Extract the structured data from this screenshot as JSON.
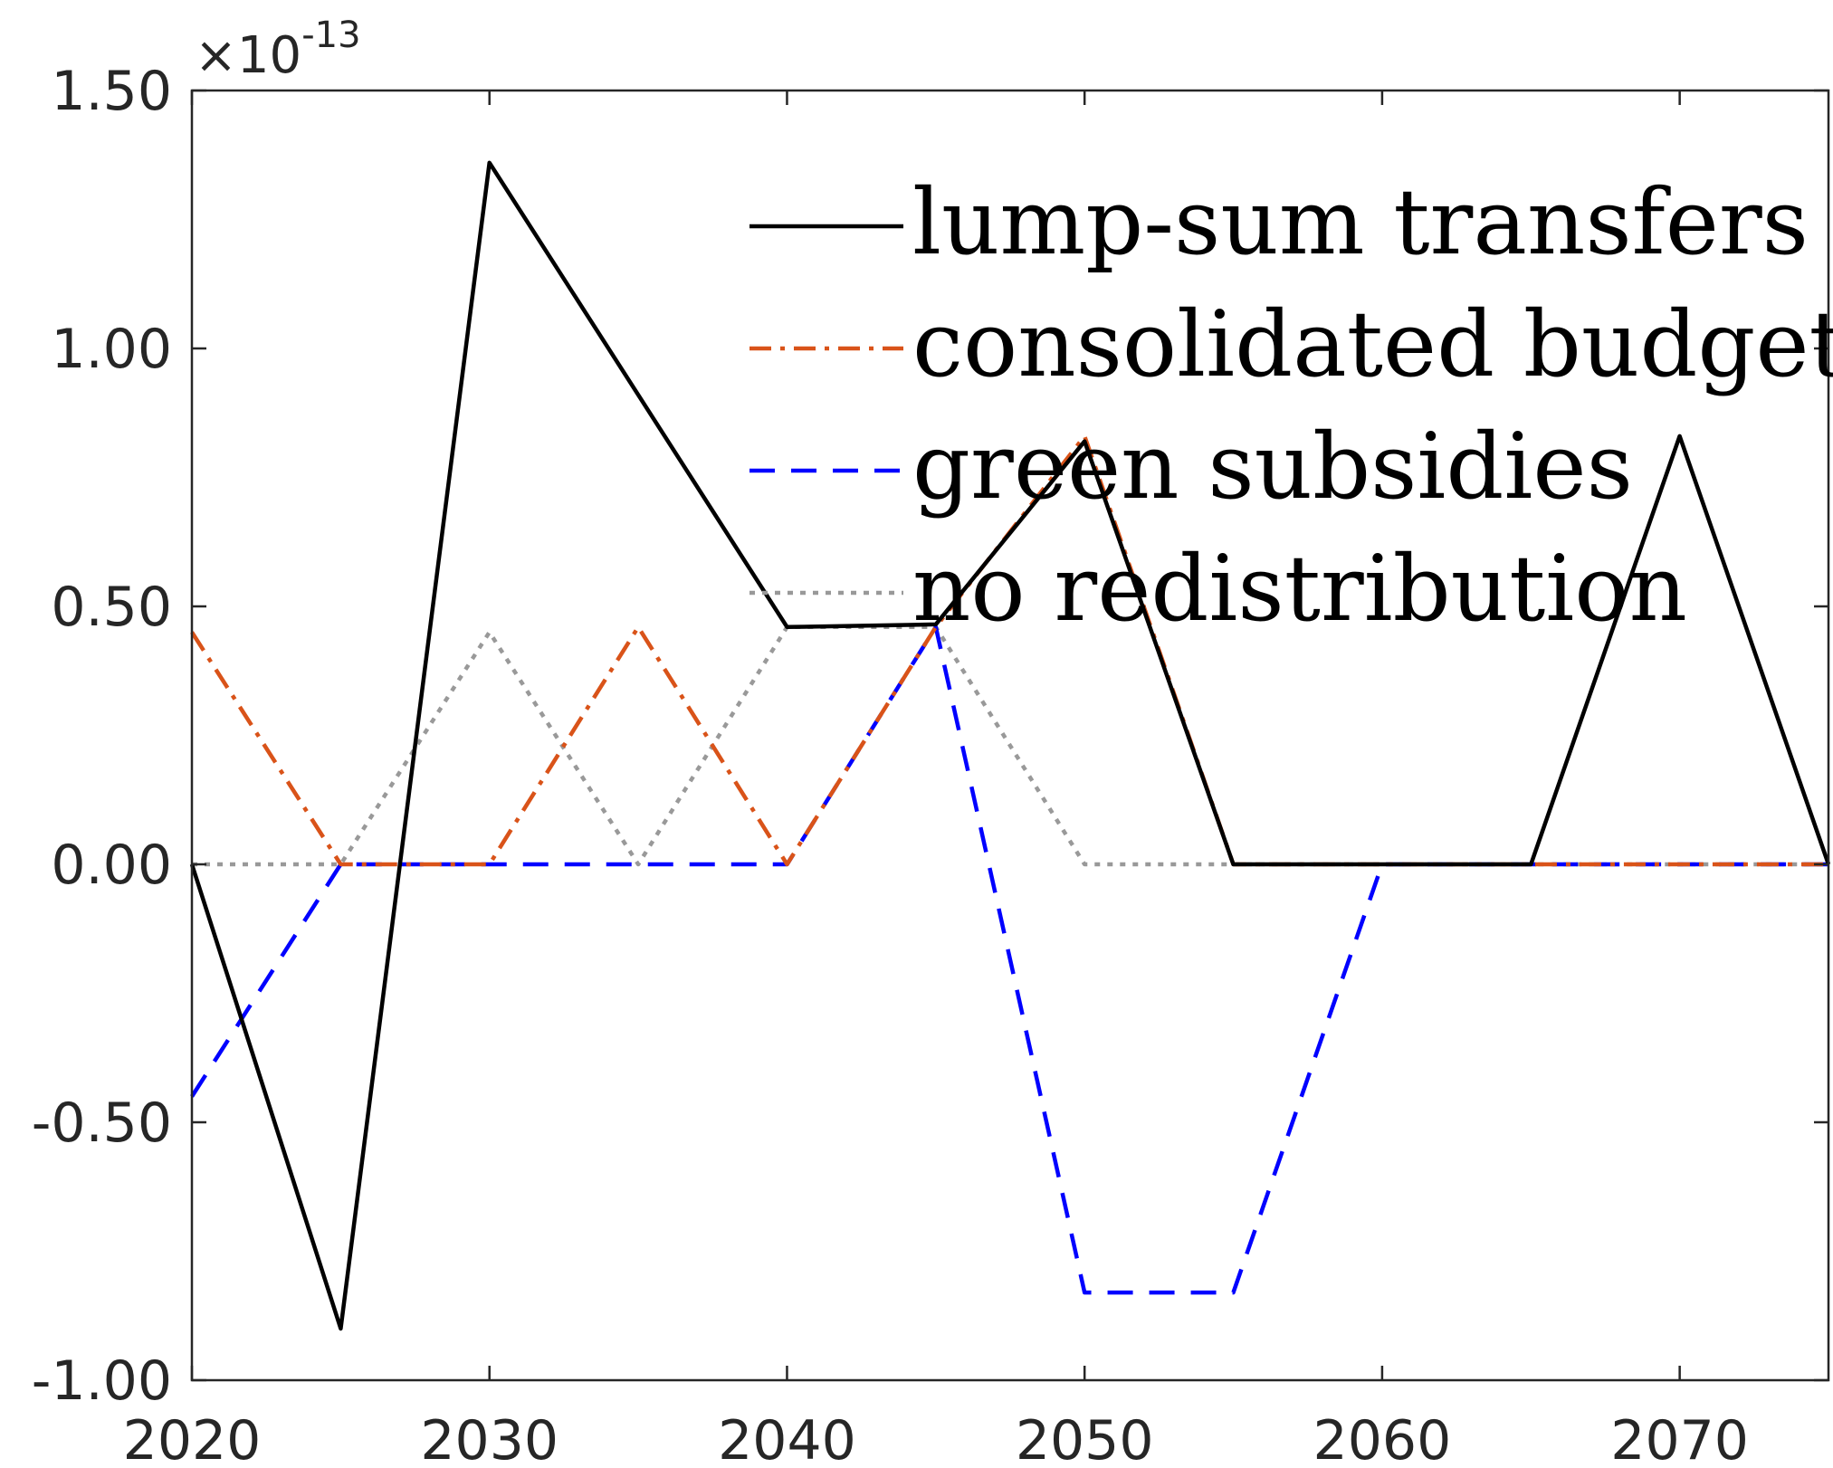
{
  "chart_data": {
    "type": "line",
    "title": "",
    "xlabel": "",
    "ylabel": "",
    "y_exponent_label": "×10",
    "y_exponent_power": "-13",
    "xlim": [
      2020,
      2075
    ],
    "ylim": [
      -1.0,
      1.5
    ],
    "x_ticks": [
      2020,
      2030,
      2040,
      2050,
      2060,
      2070
    ],
    "x_tick_labels": [
      "2020",
      "2030",
      "2040",
      "2050",
      "2060",
      "2070"
    ],
    "y_ticks": [
      -1.0,
      -0.5,
      0.0,
      0.5,
      1.0,
      1.5
    ],
    "y_tick_labels": [
      "-1.00",
      "-0.50",
      "0.00",
      "0.50",
      "1.00",
      "1.50"
    ],
    "grid": false,
    "legend_position": "top-right",
    "x": [
      2020,
      2025,
      2030,
      2035,
      2040,
      2045,
      2050,
      2055,
      2060,
      2065,
      2070,
      2075
    ],
    "series": [
      {
        "name": "lump-sum transfers",
        "color": "#000000",
        "dash": "solid",
        "values": [
          0.0,
          -0.9,
          1.36,
          0.91,
          0.46,
          0.465,
          0.82,
          0.0,
          0.0,
          0.0,
          0.83,
          0.0
        ]
      },
      {
        "name": "consolidated budget",
        "color": "#D95319",
        "dash": "dashdot",
        "values": [
          0.45,
          0.0,
          0.0,
          0.46,
          0.0,
          0.46,
          0.83,
          0.0,
          0.0,
          0.0,
          0.0,
          0.0
        ]
      },
      {
        "name": "green subsidies",
        "color": "#0000FF",
        "dash": "dashed",
        "values": [
          -0.45,
          0.0,
          0.0,
          0.0,
          0.0,
          0.46,
          -0.83,
          -0.83,
          0.0,
          0.0,
          0.0,
          0.0
        ]
      },
      {
        "name": "no redistribution",
        "color": "#999999",
        "dash": "dotted",
        "values": [
          0.0,
          0.0,
          0.45,
          0.0,
          0.46,
          0.46,
          0.0,
          0.0,
          0.0,
          0.0,
          0.0,
          0.0
        ]
      }
    ]
  }
}
